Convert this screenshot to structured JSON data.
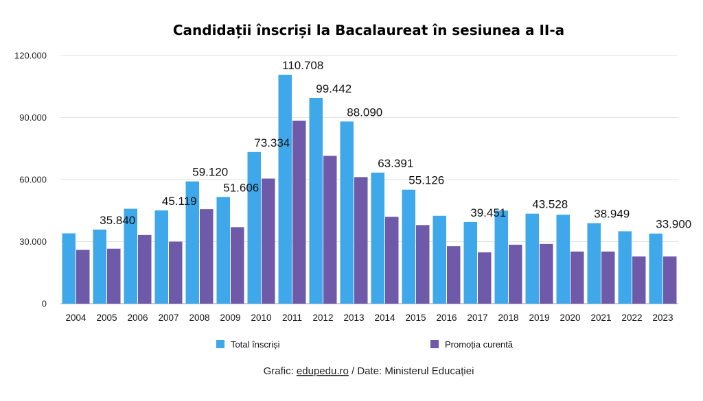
{
  "chart_data": {
    "type": "bar",
    "title": "Candidații înscriși la Bacalaureat în sesiunea a II-a",
    "categories": [
      "2004",
      "2005",
      "2006",
      "2007",
      "2008",
      "2009",
      "2010",
      "2011",
      "2012",
      "2013",
      "2014",
      "2015",
      "2016",
      "2017",
      "2018",
      "2019",
      "2020",
      "2021",
      "2022",
      "2023"
    ],
    "series": [
      {
        "name": "Total înscriși",
        "color": "#3ea8ea",
        "values": [
          34000,
          35840,
          45900,
          45119,
          59120,
          51606,
          73334,
          110708,
          99442,
          88090,
          63391,
          55126,
          42500,
          39451,
          45000,
          43528,
          43000,
          38949,
          35000,
          33900
        ]
      },
      {
        "name": "Promoția curentă",
        "color": "#6e5aa8",
        "values": [
          26000,
          26600,
          33200,
          30000,
          45700,
          37000,
          60500,
          88500,
          71500,
          61200,
          42000,
          38000,
          27800,
          24800,
          28500,
          28900,
          25200,
          25200,
          22800,
          22800
        ]
      }
    ],
    "data_labels": {
      "2005": "35.840",
      "2007": "45.119",
      "2008": "59.120",
      "2009": "51.606",
      "2010": "73.334",
      "2011": "110.708",
      "2012": "99.442",
      "2013": "88.090",
      "2014": "63.391",
      "2015": "55.126",
      "2017": "39.451",
      "2019": "43.528",
      "2021": "38.949",
      "2023": "33.900"
    },
    "ylim": [
      0,
      120000
    ],
    "yticks": [
      0,
      30000,
      60000,
      90000,
      120000
    ],
    "ytick_labels": [
      "0",
      "30.000",
      "60.000",
      "90.000",
      "120.000"
    ],
    "grid": true,
    "legend_position": "bottom",
    "xlabel": "",
    "ylabel": ""
  },
  "credit": {
    "prefix": "Grafic: ",
    "link": "edupedu.ro",
    "suffix": " / Date: Ministerul Educației"
  }
}
